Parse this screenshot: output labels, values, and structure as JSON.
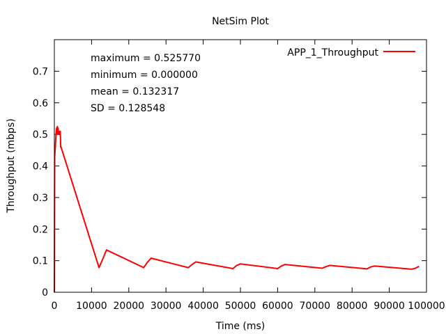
{
  "chart_data": {
    "type": "line",
    "title": "NetSim Plot",
    "xlabel": "Time (ms)",
    "ylabel": "Throughput (mbps)",
    "xlim": [
      0,
      100000
    ],
    "ylim": [
      0,
      0.8
    ],
    "xticks": [
      0,
      10000,
      20000,
      30000,
      40000,
      50000,
      60000,
      70000,
      80000,
      90000,
      100000
    ],
    "xtick_labels": [
      "0",
      "10000",
      "20000",
      "30000",
      "40000",
      "50000",
      "60000",
      "70000",
      "80000",
      "90000",
      "100000"
    ],
    "yticks": [
      0,
      0.1,
      0.2,
      0.3,
      0.4,
      0.5,
      0.6,
      0.7
    ],
    "ytick_labels": [
      "0",
      "0.1",
      "0.2",
      "0.3",
      "0.4",
      "0.5",
      "0.6",
      "0.7"
    ],
    "legend_position": "top-right",
    "grid": false,
    "stats": [
      "maximum = 0.525770",
      "minimum = 0.000000",
      "mean = 0.132317",
      "SD = 0.128548"
    ],
    "series": [
      {
        "name": "APP_1_Throughput",
        "color": "#ff0000",
        "x": [
          0,
          100,
          200,
          300,
          400,
          500,
          600,
          700,
          800,
          900,
          1000,
          1100,
          1200,
          1400,
          1600,
          1700,
          1800,
          12000,
          13000,
          14000,
          24000,
          25000,
          26000,
          36000,
          37000,
          38000,
          48000,
          49000,
          50000,
          60000,
          61000,
          62000,
          72000,
          73000,
          74000,
          84000,
          85000,
          86000,
          96000,
          97000,
          98000
        ],
        "y": [
          0.0,
          0.43,
          0.45,
          0.47,
          0.49,
          0.51,
          0.52,
          0.5,
          0.525,
          0.51,
          0.52,
          0.5,
          0.51,
          0.5,
          0.51,
          0.46,
          0.46,
          0.078,
          0.105,
          0.134,
          0.078,
          0.095,
          0.108,
          0.078,
          0.088,
          0.096,
          0.075,
          0.085,
          0.09,
          0.075,
          0.083,
          0.088,
          0.076,
          0.081,
          0.085,
          0.074,
          0.08,
          0.083,
          0.073,
          0.076,
          0.082
        ]
      }
    ]
  }
}
